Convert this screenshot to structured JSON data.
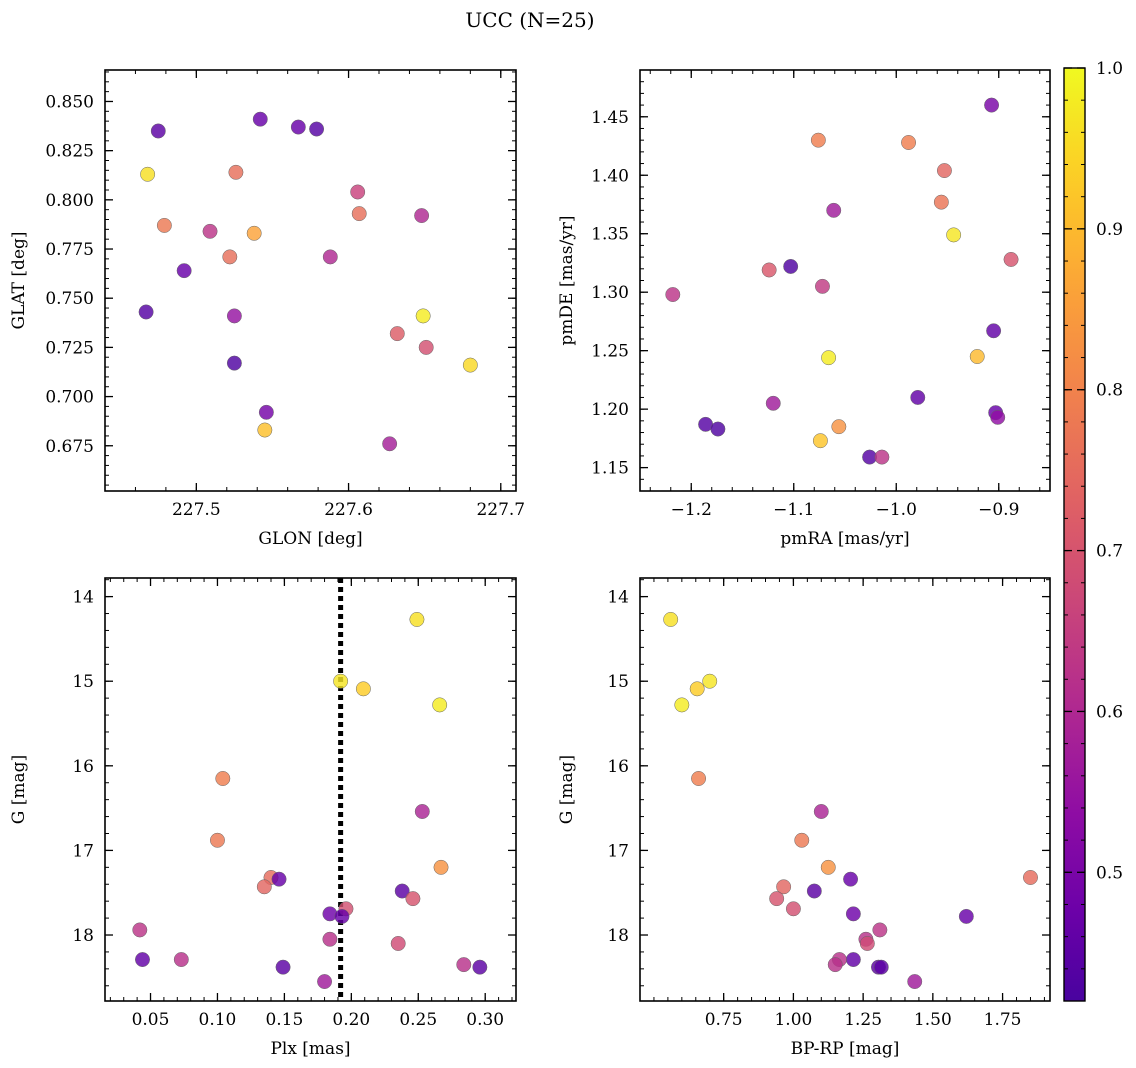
{
  "figure": {
    "title": "UCC (N=25)"
  },
  "colorbar": {
    "min": 0.42,
    "max": 1.0,
    "ticks": [
      0.5,
      0.6,
      0.7,
      0.8,
      0.9,
      1.0
    ],
    "tick_labels": [
      "0.5",
      "0.6",
      "0.7",
      "0.8",
      "0.9",
      "1.0"
    ],
    "colormap": "plasma"
  },
  "chart_data": [
    {
      "type": "scatter",
      "xlabel": "GLON [deg]",
      "ylabel": "GLAT [deg]",
      "xlim": [
        227.44,
        227.71
      ],
      "ylim": [
        0.652,
        0.866
      ],
      "xticks": [
        227.5,
        227.6,
        227.7
      ],
      "xtick_labels": [
        "227.5",
        "227.6",
        "227.7"
      ],
      "yticks": [
        0.675,
        0.7,
        0.725,
        0.75,
        0.775,
        0.8,
        0.825,
        0.85
      ],
      "ytick_labels": [
        "0.675",
        "0.700",
        "0.725",
        "0.750",
        "0.775",
        "0.800",
        "0.825",
        "0.850"
      ],
      "points": [
        {
          "x": 227.475,
          "y": 0.835,
          "c": 0.45
        },
        {
          "x": 227.468,
          "y": 0.813,
          "c": 0.96
        },
        {
          "x": 227.479,
          "y": 0.787,
          "c": 0.78
        },
        {
          "x": 227.467,
          "y": 0.743,
          "c": 0.44
        },
        {
          "x": 227.492,
          "y": 0.764,
          "c": 0.47
        },
        {
          "x": 227.509,
          "y": 0.784,
          "c": 0.63
        },
        {
          "x": 227.522,
          "y": 0.771,
          "c": 0.76
        },
        {
          "x": 227.525,
          "y": 0.741,
          "c": 0.55
        },
        {
          "x": 227.525,
          "y": 0.717,
          "c": 0.43
        },
        {
          "x": 227.526,
          "y": 0.814,
          "c": 0.76
        },
        {
          "x": 227.538,
          "y": 0.783,
          "c": 0.86
        },
        {
          "x": 227.542,
          "y": 0.841,
          "c": 0.47
        },
        {
          "x": 227.546,
          "y": 0.692,
          "c": 0.49
        },
        {
          "x": 227.545,
          "y": 0.683,
          "c": 0.91
        },
        {
          "x": 227.567,
          "y": 0.837,
          "c": 0.47
        },
        {
          "x": 227.579,
          "y": 0.836,
          "c": 0.44
        },
        {
          "x": 227.588,
          "y": 0.771,
          "c": 0.6
        },
        {
          "x": 227.606,
          "y": 0.804,
          "c": 0.66
        },
        {
          "x": 227.607,
          "y": 0.793,
          "c": 0.76
        },
        {
          "x": 227.627,
          "y": 0.676,
          "c": 0.58
        },
        {
          "x": 227.632,
          "y": 0.732,
          "c": 0.72
        },
        {
          "x": 227.648,
          "y": 0.792,
          "c": 0.6
        },
        {
          "x": 227.649,
          "y": 0.741,
          "c": 0.98
        },
        {
          "x": 227.651,
          "y": 0.725,
          "c": 0.69
        },
        {
          "x": 227.68,
          "y": 0.716,
          "c": 0.95
        }
      ]
    },
    {
      "type": "scatter",
      "xlabel": "pmRA [mas/yr]",
      "ylabel": "pmDE [mas/yr]",
      "xlim": [
        -1.25,
        -0.85
      ],
      "ylim": [
        1.13,
        1.49
      ],
      "xticks": [
        -1.2,
        -1.1,
        -1.0,
        -0.9
      ],
      "xtick_labels": [
        "−1.2",
        "−1.1",
        "−1.0",
        "−0.9"
      ],
      "yticks": [
        1.15,
        1.2,
        1.25,
        1.3,
        1.35,
        1.4,
        1.45
      ],
      "ytick_labels": [
        "1.15",
        "1.20",
        "1.25",
        "1.30",
        "1.35",
        "1.40",
        "1.45"
      ],
      "points": [
        {
          "x": -1.218,
          "y": 1.298,
          "c": 0.63
        },
        {
          "x": -1.186,
          "y": 1.187,
          "c": 0.44
        },
        {
          "x": -1.174,
          "y": 1.183,
          "c": 0.43
        },
        {
          "x": -1.124,
          "y": 1.319,
          "c": 0.71
        },
        {
          "x": -1.12,
          "y": 1.205,
          "c": 0.57
        },
        {
          "x": -1.103,
          "y": 1.322,
          "c": 0.43
        },
        {
          "x": -1.076,
          "y": 1.43,
          "c": 0.79
        },
        {
          "x": -1.074,
          "y": 1.173,
          "c": 0.92
        },
        {
          "x": -1.072,
          "y": 1.305,
          "c": 0.64
        },
        {
          "x": -1.066,
          "y": 1.244,
          "c": 0.98
        },
        {
          "x": -1.061,
          "y": 1.37,
          "c": 0.57
        },
        {
          "x": -1.056,
          "y": 1.185,
          "c": 0.83
        },
        {
          "x": -1.026,
          "y": 1.159,
          "c": 0.44
        },
        {
          "x": -1.014,
          "y": 1.159,
          "c": 0.63
        },
        {
          "x": -0.988,
          "y": 1.428,
          "c": 0.79
        },
        {
          "x": -0.979,
          "y": 1.21,
          "c": 0.46
        },
        {
          "x": -0.956,
          "y": 1.377,
          "c": 0.77
        },
        {
          "x": -0.953,
          "y": 1.404,
          "c": 0.74
        },
        {
          "x": -0.944,
          "y": 1.349,
          "c": 0.97
        },
        {
          "x": -0.921,
          "y": 1.245,
          "c": 0.9
        },
        {
          "x": -0.907,
          "y": 1.46,
          "c": 0.5
        },
        {
          "x": -0.905,
          "y": 1.267,
          "c": 0.46
        },
        {
          "x": -0.903,
          "y": 1.197,
          "c": 0.47
        },
        {
          "x": -0.901,
          "y": 1.193,
          "c": 0.54
        },
        {
          "x": -0.888,
          "y": 1.328,
          "c": 0.7
        }
      ]
    },
    {
      "type": "scatter",
      "xlabel": "Plx [mas]",
      "ylabel": "G [mag]",
      "xlim": [
        0.016,
        0.323
      ],
      "ylim": [
        18.78,
        13.78
      ],
      "y_inverted": true,
      "vline": {
        "x": 0.192,
        "style": "dotted"
      },
      "xticks": [
        0.05,
        0.1,
        0.15,
        0.2,
        0.25,
        0.3
      ],
      "xtick_labels": [
        "0.05",
        "0.10",
        "0.15",
        "0.20",
        "0.25",
        "0.30"
      ],
      "yticks": [
        14,
        15,
        16,
        17,
        18
      ],
      "ytick_labels": [
        "14",
        "15",
        "16",
        "17",
        "18"
      ],
      "points": [
        {
          "x": 0.249,
          "y": 14.27,
          "c": 0.96
        },
        {
          "x": 0.192,
          "y": 15.0,
          "c": 0.97
        },
        {
          "x": 0.209,
          "y": 15.09,
          "c": 0.93
        },
        {
          "x": 0.266,
          "y": 15.28,
          "c": 0.98
        },
        {
          "x": 0.104,
          "y": 16.15,
          "c": 0.79
        },
        {
          "x": 0.1,
          "y": 16.88,
          "c": 0.78
        },
        {
          "x": 0.253,
          "y": 16.54,
          "c": 0.59
        },
        {
          "x": 0.267,
          "y": 17.2,
          "c": 0.83
        },
        {
          "x": 0.14,
          "y": 17.32,
          "c": 0.75
        },
        {
          "x": 0.135,
          "y": 17.43,
          "c": 0.74
        },
        {
          "x": 0.146,
          "y": 17.34,
          "c": 0.47
        },
        {
          "x": 0.238,
          "y": 17.48,
          "c": 0.45
        },
        {
          "x": 0.246,
          "y": 17.57,
          "c": 0.7
        },
        {
          "x": 0.196,
          "y": 17.69,
          "c": 0.69
        },
        {
          "x": 0.184,
          "y": 17.75,
          "c": 0.48
        },
        {
          "x": 0.193,
          "y": 17.78,
          "c": 0.47
        },
        {
          "x": 0.042,
          "y": 17.94,
          "c": 0.63
        },
        {
          "x": 0.184,
          "y": 18.05,
          "c": 0.62
        },
        {
          "x": 0.235,
          "y": 18.1,
          "c": 0.68
        },
        {
          "x": 0.044,
          "y": 18.29,
          "c": 0.46
        },
        {
          "x": 0.073,
          "y": 18.29,
          "c": 0.62
        },
        {
          "x": 0.149,
          "y": 18.38,
          "c": 0.45
        },
        {
          "x": 0.284,
          "y": 18.35,
          "c": 0.62
        },
        {
          "x": 0.296,
          "y": 18.38,
          "c": 0.45
        },
        {
          "x": 0.18,
          "y": 18.55,
          "c": 0.57
        }
      ]
    },
    {
      "type": "scatter",
      "xlabel": "BP-RP [mag]",
      "ylabel": "G [mag]",
      "xlim": [
        0.45,
        1.92
      ],
      "ylim": [
        18.78,
        13.78
      ],
      "y_inverted": true,
      "xticks": [
        0.75,
        1.0,
        1.25,
        1.5,
        1.75
      ],
      "xtick_labels": [
        "0.75",
        "1.00",
        "1.25",
        "1.50",
        "1.75"
      ],
      "yticks": [
        14,
        15,
        16,
        17,
        18
      ],
      "ytick_labels": [
        "14",
        "15",
        "16",
        "17",
        "18"
      ],
      "points": [
        {
          "x": 0.56,
          "y": 14.27,
          "c": 0.96
        },
        {
          "x": 0.6,
          "y": 15.28,
          "c": 0.98
        },
        {
          "x": 0.655,
          "y": 15.09,
          "c": 0.93
        },
        {
          "x": 0.7,
          "y": 15.0,
          "c": 0.97
        },
        {
          "x": 0.66,
          "y": 16.15,
          "c": 0.79
        },
        {
          "x": 1.1,
          "y": 16.54,
          "c": 0.59
        },
        {
          "x": 1.03,
          "y": 16.88,
          "c": 0.78
        },
        {
          "x": 1.125,
          "y": 17.2,
          "c": 0.83
        },
        {
          "x": 1.205,
          "y": 17.34,
          "c": 0.47
        },
        {
          "x": 1.85,
          "y": 17.32,
          "c": 0.75
        },
        {
          "x": 0.965,
          "y": 17.43,
          "c": 0.74
        },
        {
          "x": 1.075,
          "y": 17.48,
          "c": 0.45
        },
        {
          "x": 0.94,
          "y": 17.57,
          "c": 0.7
        },
        {
          "x": 1.0,
          "y": 17.69,
          "c": 0.69
        },
        {
          "x": 1.215,
          "y": 17.75,
          "c": 0.48
        },
        {
          "x": 1.62,
          "y": 17.78,
          "c": 0.47
        },
        {
          "x": 1.31,
          "y": 17.94,
          "c": 0.63
        },
        {
          "x": 1.26,
          "y": 18.05,
          "c": 0.62
        },
        {
          "x": 1.265,
          "y": 18.1,
          "c": 0.68
        },
        {
          "x": 1.215,
          "y": 18.29,
          "c": 0.46
        },
        {
          "x": 1.165,
          "y": 18.29,
          "c": 0.62
        },
        {
          "x": 1.15,
          "y": 18.35,
          "c": 0.62
        },
        {
          "x": 1.305,
          "y": 18.38,
          "c": 0.45
        },
        {
          "x": 1.315,
          "y": 18.38,
          "c": 0.45
        },
        {
          "x": 1.435,
          "y": 18.55,
          "c": 0.57
        }
      ]
    }
  ]
}
